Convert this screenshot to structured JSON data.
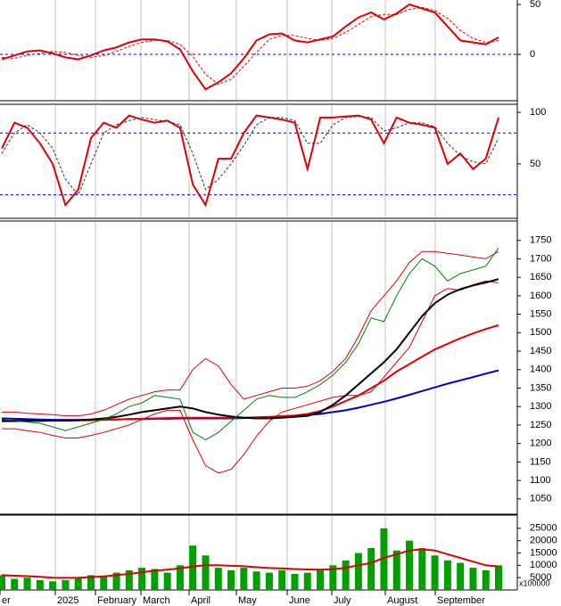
{
  "chart_data": [
    {
      "type": "line",
      "ylim": [
        -45.5,
        54.5
      ],
      "yticks": [
        50,
        0
      ],
      "hlines": [
        0
      ],
      "hline_color": "#0000cc",
      "series": [
        {
          "color": "#e00000",
          "style": "solid",
          "values": [
            -5,
            -1,
            3,
            4,
            1,
            -3,
            -5,
            -1,
            4,
            7,
            12,
            15,
            15,
            13,
            5,
            -17,
            -35,
            -28,
            -19,
            -4,
            14,
            20,
            21,
            14,
            12,
            15,
            18,
            28,
            37,
            42,
            35,
            41,
            50,
            46,
            42,
            28,
            14,
            12,
            10,
            17
          ]
        },
        {
          "color": "#e00000",
          "style": "dashed",
          "values": [
            -3,
            -4,
            -1,
            1,
            3,
            2,
            -1,
            -3,
            -1,
            3,
            8,
            12,
            14,
            14,
            10,
            -2,
            -20,
            -30,
            -25,
            -12,
            2,
            15,
            19,
            19,
            16,
            14,
            16,
            22,
            30,
            38,
            40,
            40,
            45,
            47,
            44,
            36,
            24,
            16,
            12,
            14
          ]
        }
      ]
    },
    {
      "type": "line",
      "ylim": [
        -2,
        107
      ],
      "yticks": [
        100,
        50
      ],
      "hlines": [
        80,
        20
      ],
      "hline_color": "#0000cc",
      "series": [
        {
          "color": "#e00000",
          "style": "solid",
          "values": [
            65,
            90,
            85,
            70,
            50,
            10,
            25,
            75,
            90,
            85,
            97,
            93,
            90,
            92,
            85,
            30,
            10,
            55,
            55,
            80,
            97,
            95,
            93,
            90,
            45,
            95,
            95,
            96,
            97,
            93,
            70,
            95,
            90,
            88,
            85,
            50,
            60,
            45,
            55,
            95
          ]
        },
        {
          "color": "#333333",
          "style": "dashed",
          "values": [
            60,
            80,
            88,
            80,
            65,
            35,
            20,
            50,
            80,
            88,
            92,
            95,
            93,
            91,
            88,
            60,
            25,
            35,
            50,
            68,
            88,
            95,
            95,
            92,
            70,
            70,
            88,
            95,
            96,
            95,
            82,
            85,
            90,
            90,
            86,
            70,
            58,
            52,
            50,
            75
          ]
        }
      ]
    },
    {
      "type": "line",
      "ylim": [
        1011,
        1800
      ],
      "yticks": [
        1050,
        1100,
        1150,
        1200,
        1250,
        1300,
        1350,
        1400,
        1450,
        1500,
        1550,
        1600,
        1650,
        1700,
        1750
      ],
      "series": [
        {
          "color": "#e00000",
          "style": "thin",
          "values": [
            1285,
            1285,
            1282,
            1280,
            1278,
            1275,
            1275,
            1280,
            1290,
            1305,
            1320,
            1330,
            1340,
            1345,
            1345,
            1400,
            1430,
            1410,
            1360,
            1320,
            1330,
            1340,
            1350,
            1350,
            1355,
            1370,
            1395,
            1430,
            1490,
            1560,
            1600,
            1640,
            1690,
            1720,
            1720,
            1715,
            1710,
            1705,
            1700,
            1720
          ]
        },
        {
          "color": "#e00000",
          "style": "thin",
          "values": [
            1240,
            1240,
            1235,
            1230,
            1222,
            1215,
            1215,
            1222,
            1230,
            1240,
            1250,
            1265,
            1280,
            1290,
            1290,
            1210,
            1140,
            1120,
            1130,
            1170,
            1220,
            1260,
            1285,
            1295,
            1305,
            1315,
            1325,
            1330,
            1330,
            1340,
            1380,
            1420,
            1460,
            1530,
            1600,
            1620,
            1615,
            1630,
            1640,
            1635
          ]
        },
        {
          "color": "#0000cc",
          "style": "solid",
          "values": [
            1268,
            1267,
            1266,
            1265,
            1264,
            1264,
            1264,
            1264,
            1265,
            1265,
            1266,
            1266,
            1267,
            1267,
            1268,
            1268,
            1268,
            1268,
            1268,
            1269,
            1270,
            1271,
            1273,
            1275,
            1277,
            1280,
            1285,
            1290,
            1297,
            1305,
            1313,
            1322,
            1332,
            1342,
            1352,
            1362,
            1371,
            1380,
            1389,
            1398
          ]
        },
        {
          "color": "#e00000",
          "style": "solid",
          "values": [
            1260,
            1260,
            1261,
            1261,
            1262,
            1262,
            1263,
            1263,
            1264,
            1265,
            1266,
            1267,
            1268,
            1269,
            1270,
            1270,
            1270,
            1270,
            1270,
            1270,
            1271,
            1272,
            1274,
            1276,
            1280,
            1288,
            1300,
            1315,
            1330,
            1350,
            1370,
            1395,
            1415,
            1435,
            1455,
            1470,
            1485,
            1498,
            1510,
            1520
          ]
        },
        {
          "color": "#000000",
          "style": "solid",
          "values": [
            1262,
            1262,
            1262,
            1262,
            1262,
            1262,
            1263,
            1265,
            1268,
            1272,
            1278,
            1285,
            1290,
            1295,
            1300,
            1295,
            1285,
            1278,
            1273,
            1270,
            1268,
            1268,
            1270,
            1272,
            1275,
            1285,
            1305,
            1330,
            1360,
            1390,
            1420,
            1455,
            1500,
            1545,
            1580,
            1603,
            1618,
            1628,
            1636,
            1645
          ]
        },
        {
          "color": "#008000",
          "style": "thin",
          "values": [
            1265,
            1262,
            1258,
            1255,
            1245,
            1235,
            1245,
            1255,
            1265,
            1280,
            1300,
            1310,
            1330,
            1325,
            1320,
            1230,
            1210,
            1230,
            1260,
            1290,
            1320,
            1330,
            1325,
            1325,
            1340,
            1360,
            1385,
            1420,
            1470,
            1540,
            1530,
            1600,
            1660,
            1700,
            1680,
            1640,
            1660,
            1670,
            1680,
            1730
          ]
        }
      ]
    },
    {
      "type": "bar",
      "ylim": [
        0,
        30000
      ],
      "yticks": [
        25000,
        20000,
        15000,
        10000,
        5000
      ],
      "unit_label": "x100000",
      "x_labels": [
        "er",
        "2025",
        "February",
        "March",
        "April",
        "May",
        "June",
        "July",
        "August",
        "September"
      ],
      "series": [
        {
          "color": "#00a000",
          "style": "bar",
          "values": [
            6000,
            4500,
            5000,
            4000,
            3500,
            4000,
            5000,
            6000,
            5500,
            7000,
            8000,
            9000,
            8500,
            7000,
            10000,
            18000,
            14000,
            9000,
            8000,
            9000,
            7500,
            7000,
            8000,
            6500,
            7000,
            8000,
            10000,
            12000,
            15000,
            17000,
            25000,
            16000,
            20000,
            17000,
            14000,
            12000,
            11000,
            9000,
            8000,
            10000
          ]
        },
        {
          "color": "#e00000",
          "style": "solid",
          "values": [
            6000,
            5800,
            5600,
            5300,
            5000,
            4900,
            5000,
            5200,
            5500,
            6000,
            6500,
            7200,
            7800,
            8200,
            8800,
            9500,
            10000,
            10000,
            9800,
            9600,
            9200,
            8900,
            8700,
            8500,
            8300,
            8200,
            8400,
            9000,
            10000,
            11000,
            13000,
            14500,
            16000,
            16500,
            16000,
            14500,
            13000,
            11500,
            10000,
            9500
          ]
        }
      ]
    }
  ]
}
